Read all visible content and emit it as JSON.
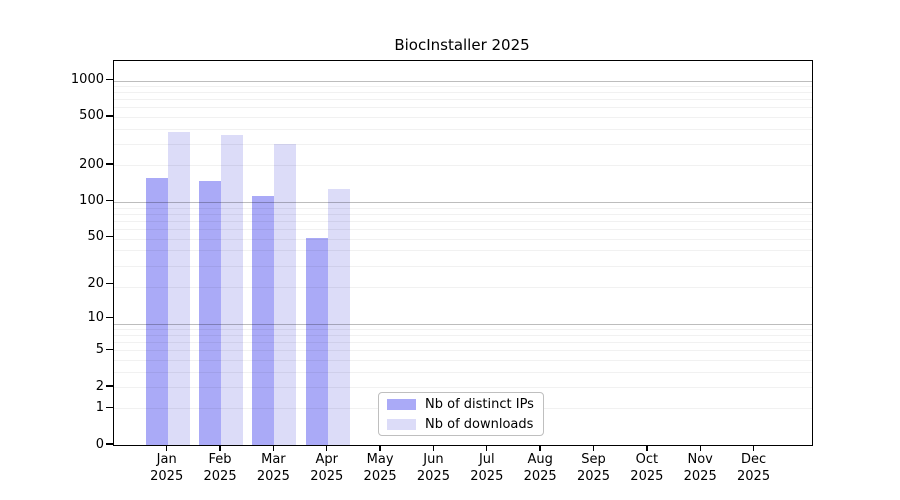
{
  "chart_data": {
    "type": "bar",
    "title": "BiocInstaller 2025",
    "x_labels": [
      {
        "line1": "Jan",
        "line2": "2025"
      },
      {
        "line1": "Feb",
        "line2": "2025"
      },
      {
        "line1": "Mar",
        "line2": "2025"
      },
      {
        "line1": "Apr",
        "line2": "2025"
      },
      {
        "line1": "May",
        "line2": "2025"
      },
      {
        "line1": "Jun",
        "line2": "2025"
      },
      {
        "line1": "Jul",
        "line2": "2025"
      },
      {
        "line1": "Aug",
        "line2": "2025"
      },
      {
        "line1": "Sep",
        "line2": "2025"
      },
      {
        "line1": "Oct",
        "line2": "2025"
      },
      {
        "line1": "Nov",
        "line2": "2025"
      },
      {
        "line1": "Dec",
        "line2": "2025"
      }
    ],
    "series": [
      {
        "name": "Nb of distinct IPs",
        "color": "#aaaaf7",
        "values": [
          158,
          148,
          111,
          50,
          null,
          null,
          null,
          null,
          null,
          null,
          null,
          null
        ]
      },
      {
        "name": "Nb of downloads",
        "color": "#dcdcf8",
        "values": [
          374,
          356,
          297,
          128,
          null,
          null,
          null,
          null,
          null,
          null,
          null,
          null
        ]
      }
    ],
    "y_ticks": [
      0,
      1,
      2,
      5,
      10,
      20,
      50,
      100,
      200,
      500,
      1000
    ],
    "y_scale": "log10(value+1)",
    "ylim": [
      0,
      1450
    ],
    "grid": "horizontal, major decades dark + minor light, drawn over bars",
    "legend_position": "bottom inside, left of center",
    "colors": {
      "distinct_ips_bar": "#aaaaf7",
      "downloads_bar": "#dcdcf8",
      "spine": "#000000",
      "major_grid": "#bcbcbc",
      "minor_grid": "#f0f0f0",
      "background": "#ffffff"
    }
  }
}
